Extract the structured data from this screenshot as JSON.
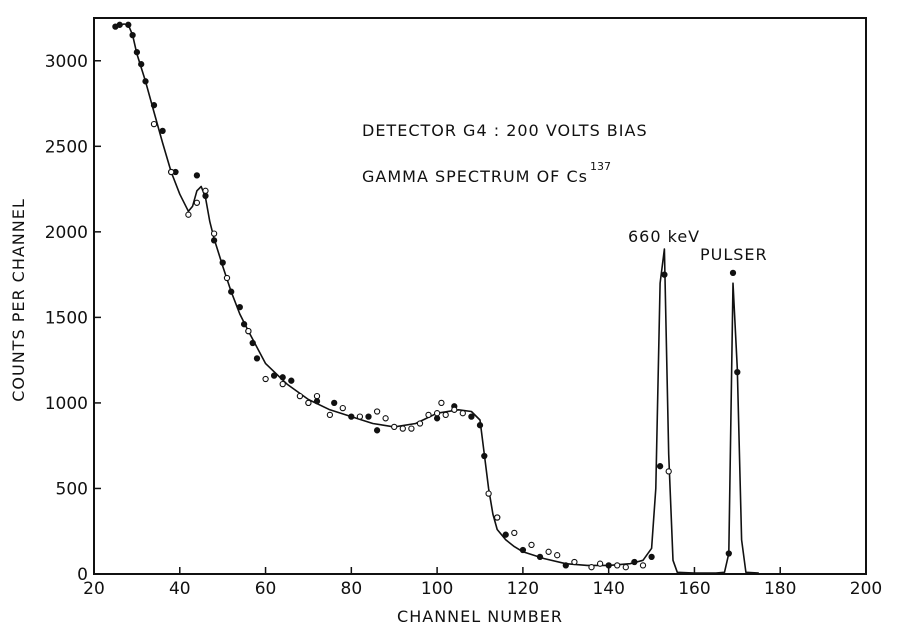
{
  "chart_data": {
    "type": "scatter",
    "title": "",
    "xlabel": "CHANNEL NUMBER",
    "ylabel": "COUNTS PER CHANNEL",
    "xlim": [
      20,
      200
    ],
    "ylim": [
      0,
      3250
    ],
    "xticks": [
      "20",
      "40",
      "60",
      "80",
      "100",
      "120",
      "140",
      "160",
      "180",
      "200"
    ],
    "yticks": [
      "0",
      "500",
      "1000",
      "1500",
      "2000",
      "2500",
      "3000"
    ],
    "grid": false,
    "annotations": {
      "line1": "DETECTOR G4 : 200 VOLTS BIAS",
      "line2_main": "GAMMA SPECTRUM OF Cs",
      "line2_sup": "137",
      "peak1": "660 keV",
      "peak2": "PULSER"
    },
    "series": [
      {
        "style": "curve",
        "x": [
          25,
          27,
          28,
          29,
          30,
          32,
          34,
          36,
          38,
          40,
          42,
          43,
          44,
          45,
          46,
          47,
          48,
          50,
          52,
          54,
          56,
          60,
          65,
          70,
          75,
          80,
          85,
          90,
          95,
          100,
          105,
          108,
          110,
          111,
          112,
          113,
          114,
          116,
          118,
          120,
          125,
          130,
          135,
          140,
          145,
          148,
          150,
          151,
          152,
          153,
          154,
          155,
          156,
          160,
          165,
          167,
          168,
          169,
          170,
          171,
          172,
          175
        ],
        "y": [
          3200,
          3215,
          3210,
          3150,
          3040,
          2880,
          2700,
          2520,
          2350,
          2220,
          2120,
          2150,
          2240,
          2265,
          2200,
          2060,
          1960,
          1800,
          1650,
          1520,
          1420,
          1230,
          1110,
          1020,
          960,
          920,
          880,
          860,
          880,
          940,
          960,
          950,
          900,
          700,
          500,
          350,
          260,
          200,
          160,
          130,
          90,
          60,
          50,
          50,
          60,
          80,
          150,
          500,
          1700,
          1900,
          700,
          80,
          10,
          5,
          5,
          10,
          120,
          1700,
          1200,
          200,
          10,
          5
        ]
      },
      {
        "style": "filled-points",
        "x": [
          25,
          26,
          28,
          29,
          30,
          31,
          32,
          34,
          36,
          38,
          39,
          44,
          46,
          48,
          50,
          52,
          54,
          55,
          56,
          57,
          58,
          62,
          64,
          66,
          70,
          72,
          76,
          80,
          84,
          86,
          100,
          104,
          108,
          110,
          111,
          114,
          116,
          120,
          124,
          130,
          140,
          146,
          150,
          152,
          153,
          168,
          169,
          170
        ],
        "y": [
          3200,
          3210,
          3210,
          3150,
          3050,
          2980,
          2880,
          2740,
          2590,
          2350,
          2350,
          2330,
          2210,
          1950,
          1820,
          1650,
          1560,
          1460,
          1420,
          1350,
          1260,
          1160,
          1150,
          1130,
          1000,
          1010,
          1000,
          920,
          920,
          840,
          910,
          980,
          920,
          870,
          690,
          330,
          230,
          140,
          100,
          50,
          50,
          70,
          100,
          630,
          1750,
          120,
          1760,
          1180
        ]
      },
      {
        "style": "open-points",
        "x": [
          34,
          38,
          42,
          44,
          46,
          48,
          51,
          56,
          60,
          64,
          68,
          70,
          72,
          75,
          78,
          82,
          86,
          88,
          90,
          92,
          94,
          96,
          98,
          100,
          101,
          102,
          104,
          106,
          112,
          114,
          118,
          122,
          126,
          128,
          132,
          136,
          138,
          142,
          144,
          148,
          154
        ],
        "y": [
          2630,
          2350,
          2100,
          2170,
          2240,
          1990,
          1730,
          1420,
          1140,
          1110,
          1040,
          1000,
          1040,
          930,
          970,
          920,
          950,
          910,
          860,
          850,
          850,
          880,
          930,
          940,
          1000,
          930,
          960,
          940,
          470,
          330,
          240,
          170,
          130,
          110,
          70,
          40,
          60,
          50,
          40,
          50,
          600
        ]
      }
    ]
  }
}
